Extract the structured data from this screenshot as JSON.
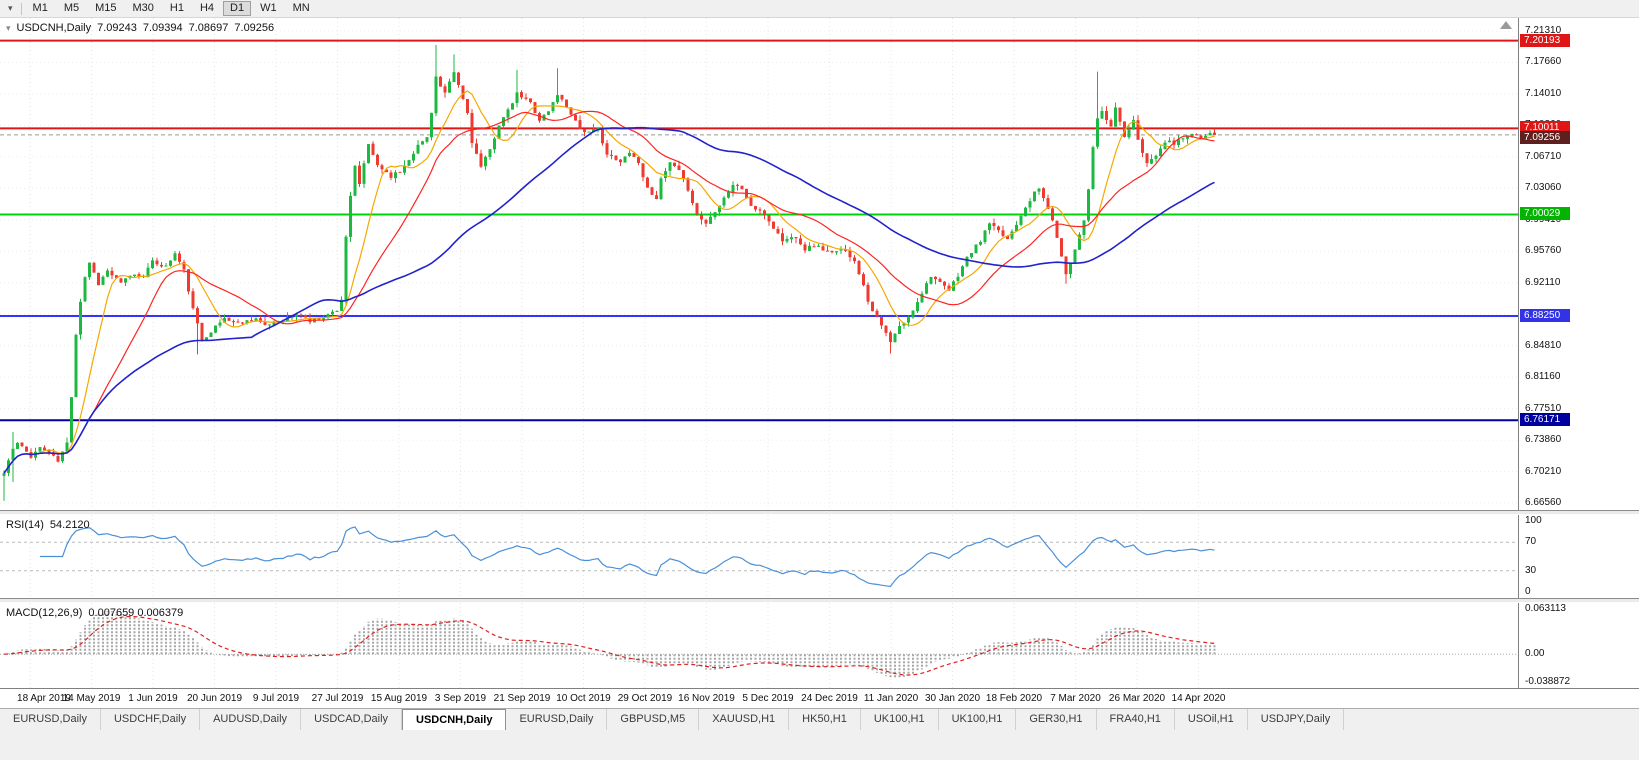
{
  "toolbar": {
    "timeframes": [
      "M1",
      "M5",
      "M15",
      "M30",
      "H1",
      "H4",
      "D1",
      "W1",
      "MN"
    ],
    "active_timeframe": "D1"
  },
  "chart_header": {
    "symbol": "USDCNH,Daily",
    "open": "7.09243",
    "high": "7.09394",
    "low": "7.08697",
    "close": "7.09256"
  },
  "price_axis": {
    "ticks": [
      {
        "label": "7.21310",
        "value": 7.2131
      },
      {
        "label": "7.17660",
        "value": 7.1766
      },
      {
        "label": "7.14010",
        "value": 7.1401
      },
      {
        "label": "7.10360",
        "value": 7.1036
      },
      {
        "label": "7.06710",
        "value": 7.0671
      },
      {
        "label": "7.03060",
        "value": 7.0306
      },
      {
        "label": "6.99410",
        "value": 6.9941
      },
      {
        "label": "6.95760",
        "value": 6.9576
      },
      {
        "label": "6.92110",
        "value": 6.9211
      },
      {
        "label": "6.88460",
        "value": 6.8846
      },
      {
        "label": "6.84810",
        "value": 6.8481
      },
      {
        "label": "6.81160",
        "value": 6.8116
      },
      {
        "label": "6.77510",
        "value": 6.7751
      },
      {
        "label": "6.73860",
        "value": 6.7386
      },
      {
        "label": "6.70210",
        "value": 6.7021
      },
      {
        "label": "6.66560",
        "value": 6.6656
      }
    ]
  },
  "rsi_panel": {
    "name": "RSI(14)",
    "value": "54.2120",
    "axis_labels": [
      {
        "label": "100",
        "value": 100
      },
      {
        "label": "70",
        "value": 70
      },
      {
        "label": "30",
        "value": 30
      },
      {
        "label": "0",
        "value": 0
      }
    ],
    "upper_level": 70,
    "lower_level": 30,
    "line_color": "#4a90d9",
    "max": 100,
    "min": 0
  },
  "macd_panel": {
    "name": "MACD(12,26,9)",
    "values": "0.007659 0.006379",
    "axis_labels": [
      {
        "label": "0.063113",
        "value": 0.063113
      },
      {
        "label": "0.00",
        "value": 0
      },
      {
        "label": "-0.038872",
        "value": -0.038872
      }
    ],
    "hist_color": "#a6a6a6",
    "signal_color": "#dd2222",
    "max": 0.063113,
    "min": -0.038872
  },
  "time_axis": {
    "dates": [
      "18 Apr 2019",
      "14 May 2019",
      "1 Jun 2019",
      "20 Jun 2019",
      "9 Jul 2019",
      "27 Jul 2019",
      "15 Aug 2019",
      "3 Sep 2019",
      "21 Sep 2019",
      "10 Oct 2019",
      "29 Oct 2019",
      "16 Nov 2019",
      "5 Dec 2019",
      "24 Dec 2019",
      "11 Jan 2020",
      "30 Jan 2020",
      "18 Feb 2020",
      "7 Mar 2020",
      "26 Mar 2020",
      "14 Apr 2020"
    ]
  },
  "tabs": {
    "items": [
      {
        "label": "EURUSD,Daily",
        "active": false
      },
      {
        "label": "USDCHF,Daily",
        "active": false
      },
      {
        "label": "AUDUSD,Daily",
        "active": false
      },
      {
        "label": "USDCAD,Daily",
        "active": false
      },
      {
        "label": "USDCNH,Daily",
        "active": true
      },
      {
        "label": "EURUSD,Daily",
        "active": false
      },
      {
        "label": "GBPUSD,M5",
        "active": false
      },
      {
        "label": "XAUUSD,H1",
        "active": false
      },
      {
        "label": "HK50,H1",
        "active": false
      },
      {
        "label": "UK100,H1",
        "active": false
      },
      {
        "label": "UK100,H1",
        "active": false
      },
      {
        "label": "GER30,H1",
        "active": false
      },
      {
        "label": "FRA40,H1",
        "active": false
      },
      {
        "label": "USOil,H1",
        "active": false
      },
      {
        "label": "USDJPY,Daily",
        "active": false
      }
    ]
  },
  "chart_data": {
    "type": "candlestick",
    "symbol": "USDCNH",
    "timeframe": "Daily",
    "visible_range": {
      "price_top": 7.2189,
      "price_bottom": 6.6575
    },
    "candle_colors": {
      "up": "#1cb841",
      "down": "#ef3a30"
    },
    "candles_approx": {
      "days": 270,
      "seed": 11,
      "noise": 0.0045,
      "wick": 0.006,
      "last_close": 7.09256,
      "anchors": [
        [
          0,
          6.7
        ],
        [
          1,
          6.715
        ],
        [
          2,
          6.728
        ],
        [
          3,
          6.735
        ],
        [
          6,
          6.72
        ],
        [
          8,
          6.73
        ],
        [
          10,
          6.724
        ],
        [
          12,
          6.714
        ],
        [
          14,
          6.735
        ],
        [
          15,
          6.79
        ],
        [
          16,
          6.862
        ],
        [
          17,
          6.9
        ],
        [
          18,
          6.928
        ],
        [
          19,
          6.945
        ],
        [
          21,
          6.92
        ],
        [
          23,
          6.935
        ],
        [
          26,
          6.92
        ],
        [
          28,
          6.93
        ],
        [
          31,
          6.93
        ],
        [
          33,
          6.945
        ],
        [
          36,
          6.94
        ],
        [
          38,
          6.955
        ],
        [
          40,
          6.935
        ],
        [
          42,
          6.89
        ],
        [
          44,
          6.855
        ],
        [
          47,
          6.87
        ],
        [
          49,
          6.88
        ],
        [
          52,
          6.874
        ],
        [
          56,
          6.88
        ],
        [
          58,
          6.87
        ],
        [
          60,
          6.876
        ],
        [
          63,
          6.88
        ],
        [
          66,
          6.885
        ],
        [
          68,
          6.876
        ],
        [
          70,
          6.88
        ],
        [
          72,
          6.884
        ],
        [
          74,
          6.89
        ],
        [
          75,
          6.902
        ],
        [
          76,
          6.975
        ],
        [
          77,
          7.02
        ],
        [
          78,
          7.055
        ],
        [
          79,
          7.035
        ],
        [
          80,
          7.06
        ],
        [
          81,
          7.08
        ],
        [
          83,
          7.058
        ],
        [
          86,
          7.045
        ],
        [
          88,
          7.05
        ],
        [
          90,
          7.065
        ],
        [
          92,
          7.08
        ],
        [
          94,
          7.09
        ],
        [
          95,
          7.12
        ],
        [
          96,
          7.16
        ],
        [
          97,
          7.148
        ],
        [
          98,
          7.14
        ],
        [
          100,
          7.165
        ],
        [
          101,
          7.15
        ],
        [
          103,
          7.118
        ],
        [
          104,
          7.085
        ],
        [
          106,
          7.055
        ],
        [
          108,
          7.075
        ],
        [
          110,
          7.105
        ],
        [
          112,
          7.12
        ],
        [
          114,
          7.14
        ],
        [
          117,
          7.13
        ],
        [
          119,
          7.11
        ],
        [
          121,
          7.12
        ],
        [
          123,
          7.14
        ],
        [
          126,
          7.118
        ],
        [
          128,
          7.1
        ],
        [
          130,
          7.095
        ],
        [
          132,
          7.1
        ],
        [
          134,
          7.07
        ],
        [
          137,
          7.06
        ],
        [
          139,
          7.074
        ],
        [
          141,
          7.06
        ],
        [
          143,
          7.03
        ],
        [
          145,
          7.02
        ],
        [
          146,
          7.04
        ],
        [
          148,
          7.06
        ],
        [
          150,
          7.05
        ],
        [
          152,
          7.03
        ],
        [
          154,
          7.0
        ],
        [
          156,
          6.99
        ],
        [
          158,
          7.005
        ],
        [
          160,
          7.02
        ],
        [
          162,
          7.035
        ],
        [
          164,
          7.03
        ],
        [
          166,
          7.01
        ],
        [
          169,
          7.0
        ],
        [
          171,
          6.985
        ],
        [
          173,
          6.97
        ],
        [
          176,
          6.975
        ],
        [
          178,
          6.96
        ],
        [
          180,
          6.965
        ],
        [
          182,
          6.96
        ],
        [
          184,
          6.955
        ],
        [
          187,
          6.96
        ],
        [
          189,
          6.945
        ],
        [
          191,
          6.92
        ],
        [
          192,
          6.9
        ],
        [
          194,
          6.88
        ],
        [
          196,
          6.862
        ],
        [
          197,
          6.852
        ],
        [
          199,
          6.87
        ],
        [
          201,
          6.88
        ],
        [
          203,
          6.9
        ],
        [
          206,
          6.93
        ],
        [
          208,
          6.92
        ],
        [
          210,
          6.912
        ],
        [
          212,
          6.93
        ],
        [
          214,
          6.95
        ],
        [
          217,
          6.97
        ],
        [
          219,
          6.99
        ],
        [
          221,
          6.98
        ],
        [
          223,
          6.972
        ],
        [
          225,
          6.99
        ],
        [
          227,
          7.01
        ],
        [
          229,
          7.025
        ],
        [
          230,
          7.03
        ],
        [
          232,
          7.008
        ],
        [
          234,
          6.975
        ],
        [
          235,
          6.95
        ],
        [
          236,
          6.932
        ],
        [
          238,
          6.96
        ],
        [
          240,
          6.995
        ],
        [
          241,
          7.03
        ],
        [
          242,
          7.08
        ],
        [
          243,
          7.11
        ],
        [
          244,
          7.12
        ],
        [
          246,
          7.1
        ],
        [
          247,
          7.125
        ],
        [
          249,
          7.09
        ],
        [
          251,
          7.11
        ],
        [
          252,
          7.085
        ],
        [
          254,
          7.06
        ],
        [
          256,
          7.07
        ],
        [
          257,
          7.078
        ],
        [
          259,
          7.088
        ],
        [
          260,
          7.083
        ],
        [
          262,
          7.09
        ],
        [
          264,
          7.094
        ],
        [
          266,
          7.088
        ],
        [
          268,
          7.094
        ],
        [
          269,
          7.09256
        ]
      ]
    },
    "wick_overrides": [
      {
        "d": 0,
        "low": 6.668
      },
      {
        "d": 2,
        "low": 6.69,
        "high": 6.748
      },
      {
        "d": 43,
        "low": 6.838
      },
      {
        "d": 76,
        "low": 6.9
      },
      {
        "d": 96,
        "high": 7.197
      },
      {
        "d": 100,
        "high": 7.186
      },
      {
        "d": 114,
        "high": 7.168
      },
      {
        "d": 123,
        "high": 7.17
      },
      {
        "d": 197,
        "low": 6.839
      },
      {
        "d": 236,
        "low": 6.92
      },
      {
        "d": 243,
        "high": 7.166
      }
    ],
    "moving_averages": [
      {
        "period": 9,
        "color": "#f5a800"
      },
      {
        "period": 21,
        "color": "#ff2424"
      },
      {
        "period": 56,
        "color": "#2222cc"
      }
    ],
    "levels": [
      {
        "label": "7.20193",
        "value": 7.20193,
        "color": "#e01616",
        "badge": "#e01616",
        "width": 2
      },
      {
        "label": "7.10011",
        "value": 7.10011,
        "color": "#e01616",
        "badge": "#e01616",
        "width": 2
      },
      {
        "label": "7.00029",
        "value": 7.00029,
        "color": "#00d20a",
        "badge": "#00b400",
        "width": 2
      },
      {
        "label": "6.88250",
        "value": 6.8825,
        "color": "#3333ff",
        "badge": "#3333e6",
        "width": 2
      },
      {
        "label": "6.76171",
        "value": 6.76171,
        "color": "#0000a0",
        "badge": "#0000a0",
        "width": 2
      }
    ],
    "current_price": {
      "label": "7.09256",
      "value": 7.09256,
      "badge_color": "#5e1f1f",
      "line_color": "#999999"
    },
    "indicators": [
      {
        "name": "RSI",
        "period": 14,
        "current": 54.212
      },
      {
        "name": "MACD",
        "fast": 12,
        "slow": 26,
        "signal": 9,
        "current_main": 0.007659,
        "current_signal": 0.006379
      }
    ]
  }
}
